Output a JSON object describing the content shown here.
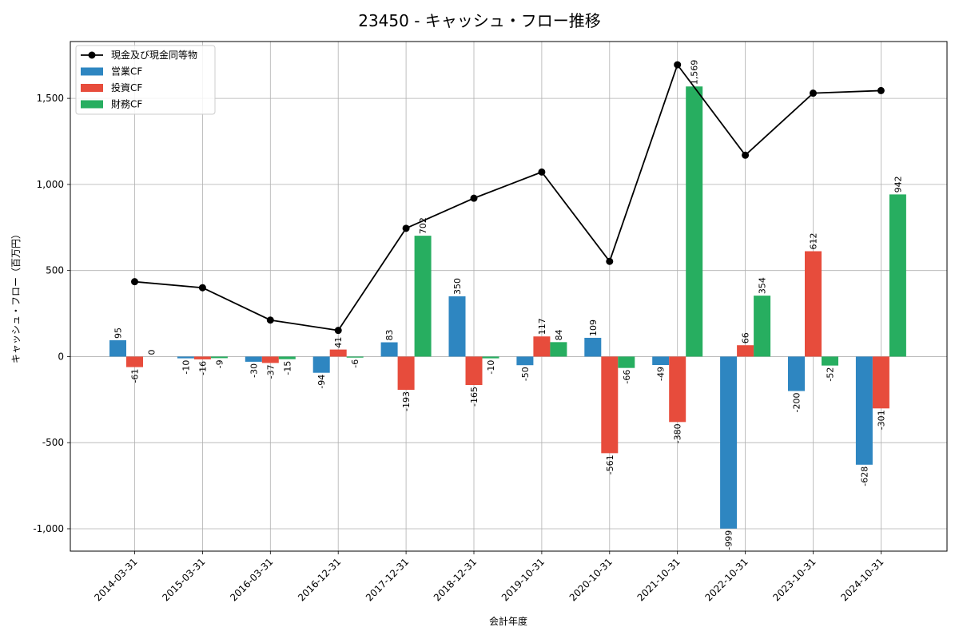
{
  "chart_data": {
    "type": "bar",
    "title": "23450 - キャッシュ・フロー推移",
    "xlabel": "会計年度",
    "ylabel": "キャッシュ・フロー（百万円）",
    "categories": [
      "2014-03-31",
      "2015-03-31",
      "2016-03-31",
      "2016-12-31",
      "2017-12-31",
      "2018-12-31",
      "2019-10-31",
      "2020-10-31",
      "2021-10-31",
      "2022-10-31",
      "2023-10-31",
      "2024-10-31"
    ],
    "ylim": [
      -1130,
      1830
    ],
    "yticks": [
      -1000,
      -500,
      0,
      500,
      1000,
      1500
    ],
    "yticklabels": [
      "-1,000",
      "-500",
      "0",
      "500",
      "1,000",
      "1,500"
    ],
    "grid": true,
    "legend_position": "top-left",
    "series": [
      {
        "name": "営業CF",
        "kind": "bar",
        "color": "#2e86c1",
        "values": [
          95,
          -10,
          -30,
          -94,
          83,
          350,
          -50,
          109,
          -49,
          -999,
          -200,
          -628
        ],
        "labels": [
          "95",
          "-10",
          "-30",
          "-94",
          "83",
          "350",
          "-50",
          "109",
          "-49",
          "-999",
          "-200",
          "-628"
        ]
      },
      {
        "name": "投資CF",
        "kind": "bar",
        "color": "#e74c3c",
        "values": [
          -61,
          -16,
          -37,
          41,
          -193,
          -165,
          117,
          -561,
          -380,
          66,
          612,
          -301
        ],
        "labels": [
          "-61",
          "-16",
          "-37",
          "41",
          "-193",
          "-165",
          "117",
          "-561",
          "-380",
          "66",
          "612",
          "-301"
        ]
      },
      {
        "name": "財務CF",
        "kind": "bar",
        "color": "#27ae60",
        "values": [
          0,
          -9,
          -15,
          -6,
          702,
          -10,
          84,
          -66,
          1569,
          354,
          -52,
          942
        ],
        "labels": [
          "0",
          "-9",
          "-15",
          "-6",
          "702",
          "-10",
          "84",
          "-66",
          "1,569",
          "354",
          "-52",
          "942"
        ]
      },
      {
        "name": "現金及び現金同等物",
        "kind": "line",
        "color": "#000000",
        "values": [
          435,
          400,
          212,
          152,
          745,
          920,
          1072,
          553,
          1695,
          1170,
          1530,
          1545
        ]
      }
    ]
  }
}
